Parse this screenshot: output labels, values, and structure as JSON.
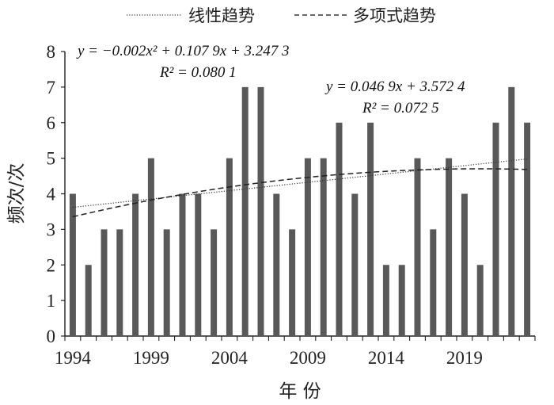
{
  "chart_data": {
    "type": "bar",
    "categories": [
      "1994",
      "1995",
      "1996",
      "1997",
      "1998",
      "1999",
      "2000",
      "2001",
      "2002",
      "2003",
      "2004",
      "2005",
      "2006",
      "2007",
      "2008",
      "2009",
      "2010",
      "2011",
      "2012",
      "2013",
      "2014",
      "2015",
      "2016",
      "2017",
      "2018",
      "2019",
      "2020",
      "2021",
      "2022",
      "2023"
    ],
    "values": [
      4,
      2,
      3,
      3,
      4,
      5,
      3,
      4,
      4,
      3,
      5,
      7,
      7,
      4,
      3,
      5,
      5,
      6,
      4,
      6,
      2,
      2,
      5,
      3,
      5,
      4,
      2,
      6,
      7,
      6
    ],
    "x_tick_labels": [
      "1994",
      "1999",
      "2004",
      "2009",
      "2014",
      "2019"
    ],
    "y_tick_labels": [
      "0",
      "1",
      "2",
      "3",
      "4",
      "5",
      "6",
      "7",
      "8"
    ],
    "xlabel": "年 份",
    "ylabel": "频次/次",
    "ylim": [
      0,
      8
    ],
    "bar_color": "#595959",
    "grid": false,
    "legend": {
      "position": "top",
      "items": [
        {
          "label": "线性趋势",
          "style": "dotted"
        },
        {
          "label": "多项式趋势",
          "style": "dashed"
        }
      ]
    },
    "trendlines": [
      {
        "type": "polynomial",
        "coefficients": [
          -0.002,
          0.1079,
          3.2473
        ],
        "equation": "y = −0.002x² + 0.107 9x + 3.247 3",
        "r2_text": "R² = 0.080 1"
      },
      {
        "type": "linear",
        "coefficients": [
          0.0469,
          3.5724
        ],
        "equation": "y = 0.046 9x + 3.572 4",
        "r2_text": "R² = 0.072 5"
      }
    ]
  }
}
